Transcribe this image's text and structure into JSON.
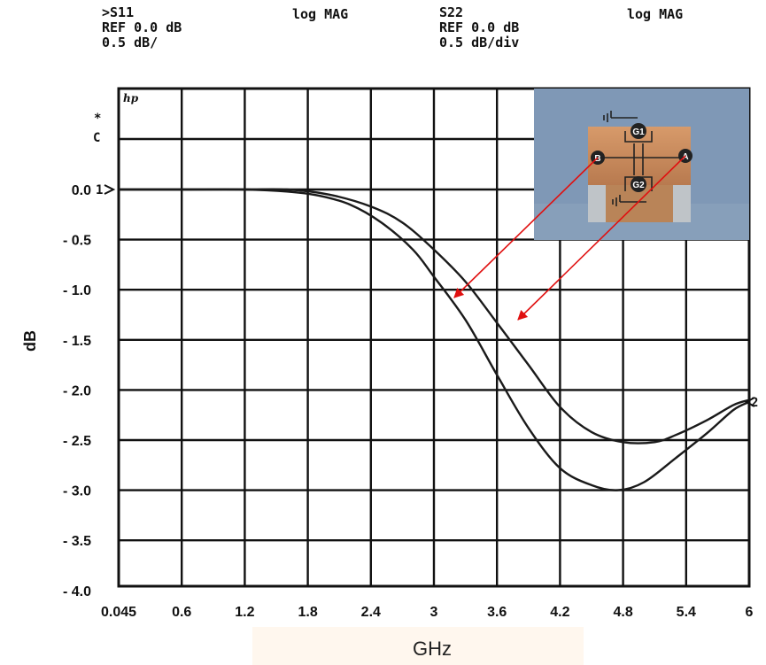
{
  "header": {
    "left": {
      "param": ">S11",
      "ref": "REF 0.0 dB",
      "scale": "0.5 dB/",
      "format": "log MAG"
    },
    "right": {
      "param": "S22",
      "ref": "REF 0.0 dB",
      "scale": "0.5 dB/div",
      "format": "log MAG"
    }
  },
  "instrument_marks": {
    "logo": "hp",
    "star": "*",
    "c": "C",
    "marker_left": "1",
    "marker_right": "2"
  },
  "colors": {
    "grid": "#111111",
    "trace": "#1a1a1a",
    "arrow": "#e01010",
    "inset_bg": "#7f98b6",
    "chip_body": "#c88a5c"
  },
  "inset": {
    "pins": [
      "A",
      "B",
      "G1",
      "G2"
    ],
    "annotation": "arrows link pin B to the lower trace and pin A to the upper trace"
  },
  "chart_data": {
    "type": "line",
    "xlabel": "GHz",
    "ylabel": "dB",
    "x_ticks": [
      "0.045",
      "0.6",
      "1.2",
      "1.8",
      "2.4",
      "3",
      "3.6",
      "4.2",
      "4.8",
      "5.4",
      "6"
    ],
    "y_ticks": [
      "0.0",
      "- 0.5",
      "- 1.0",
      "- 1.5",
      "- 2.0",
      "- 2.5",
      "- 3.0",
      "- 3.5",
      "- 4.0"
    ],
    "xlim": [
      0.045,
      6
    ],
    "ylim": [
      -4.0,
      0.0
    ],
    "grid": true,
    "series": [
      {
        "x": [
          0.045,
          0.6,
          1.2,
          1.6,
          1.9,
          2.2,
          2.5,
          2.8,
          3.0,
          3.3,
          3.6,
          3.9,
          4.2,
          4.5,
          4.75,
          5.0,
          5.3,
          5.6,
          5.85,
          6.0
        ],
        "y": [
          0.0,
          0.0,
          0.0,
          -0.02,
          -0.06,
          -0.15,
          -0.33,
          -0.6,
          -0.87,
          -1.3,
          -1.85,
          -2.38,
          -2.78,
          -2.95,
          -3.0,
          -2.92,
          -2.68,
          -2.43,
          -2.2,
          -2.12
        ]
      },
      {
        "x": [
          0.045,
          0.6,
          1.2,
          1.6,
          2.0,
          2.4,
          2.7,
          3.0,
          3.3,
          3.6,
          3.9,
          4.2,
          4.5,
          4.8,
          5.1,
          5.3,
          5.6,
          5.85,
          6.0
        ],
        "y": [
          0.0,
          0.0,
          0.0,
          0.0,
          -0.05,
          -0.17,
          -0.33,
          -0.6,
          -0.92,
          -1.33,
          -1.75,
          -2.17,
          -2.42,
          -2.52,
          -2.52,
          -2.45,
          -2.3,
          -2.15,
          -2.1
        ]
      }
    ]
  }
}
